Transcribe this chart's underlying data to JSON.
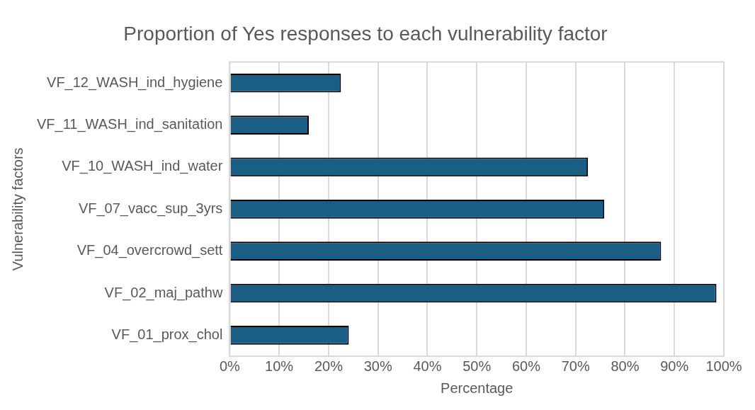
{
  "chart_data": {
    "type": "bar",
    "orientation": "horizontal",
    "title": "Proportion of Yes responses to each vulnerability factor",
    "xlabel": "Percentage",
    "ylabel": "Vulnerability factors",
    "categories": [
      "VF_12_WASH_ind_hygiene",
      "VF_11_WASH_ind_sanitation",
      "VF_10_WASH_ind_water",
      "VF_07_vacc_sup_3yrs",
      "VF_04_overcrowd_sett",
      "VF_02_maj_pathw",
      "VF_01_prox_chol"
    ],
    "values": [
      22.5,
      16.0,
      72.5,
      75.8,
      87.3,
      98.5,
      24.1
    ],
    "color": "#1b5e84",
    "xlim": [
      0,
      100
    ],
    "xticks": [
      {
        "value": 0,
        "label": "0%"
      },
      {
        "value": 10,
        "label": "10%"
      },
      {
        "value": 20,
        "label": "20%"
      },
      {
        "value": 30,
        "label": "30%"
      },
      {
        "value": 40,
        "label": "40%"
      },
      {
        "value": 50,
        "label": "50%"
      },
      {
        "value": 60,
        "label": "60%"
      },
      {
        "value": 70,
        "label": "70%"
      },
      {
        "value": 80,
        "label": "80%"
      },
      {
        "value": 90,
        "label": "90%"
      },
      {
        "value": 100,
        "label": "100%"
      }
    ],
    "grid": "x",
    "legend": false
  }
}
